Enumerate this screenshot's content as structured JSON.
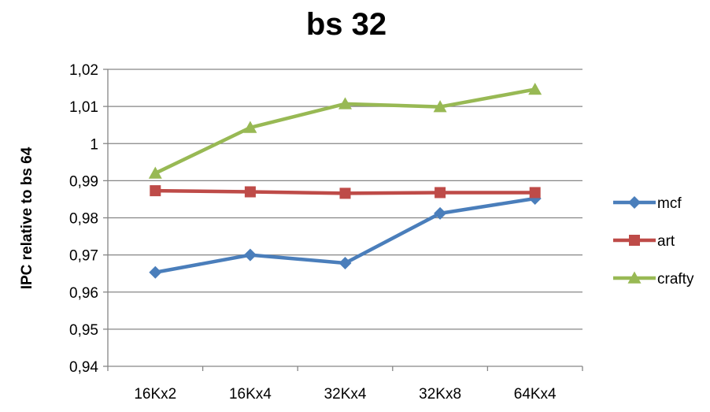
{
  "chart_data": {
    "type": "line",
    "title": "bs 32",
    "xlabel": "",
    "ylabel": "IPC relative to bs 64",
    "categories": [
      "16Kx2",
      "16Kx4",
      "32Kx4",
      "32Kx8",
      "64Kx4"
    ],
    "ylim": [
      0.94,
      1.02
    ],
    "yticks": [
      1.02,
      1.01,
      1,
      0.99,
      0.98,
      0.97,
      0.96,
      0.95,
      0.94
    ],
    "ytick_labels": [
      "1,02",
      "1,01",
      "1",
      "0,99",
      "0,98",
      "0,97",
      "0,96",
      "0,95",
      "0,94"
    ],
    "grid": true,
    "legend_position": "right",
    "series": [
      {
        "name": "mcf",
        "color": "#4a7ebb",
        "marker": "diamond",
        "values": [
          0.9653,
          0.97,
          0.9678,
          0.9812,
          0.9852
        ]
      },
      {
        "name": "art",
        "color": "#be4b48",
        "marker": "square",
        "values": [
          0.9873,
          0.987,
          0.9866,
          0.9868,
          0.9868
        ]
      },
      {
        "name": "crafty",
        "color": "#98b954",
        "marker": "triangle",
        "values": [
          0.992,
          1.0043,
          1.0107,
          1.0099,
          1.0146
        ]
      }
    ]
  }
}
